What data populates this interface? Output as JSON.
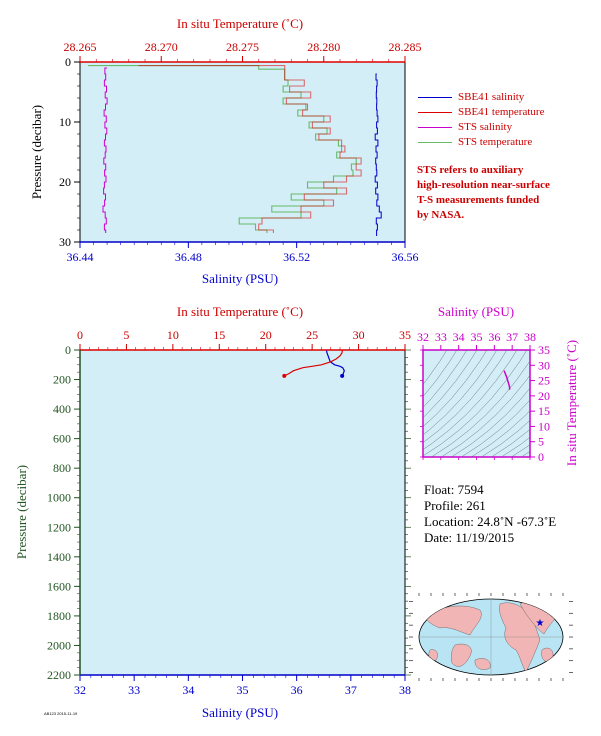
{
  "chart_data": [
    {
      "type": "line",
      "panel": "top",
      "top_axis_title": "In situ Temperature (˚C)",
      "top_ticks": [
        "28.265",
        "28.270",
        "28.275",
        "28.280",
        "28.285"
      ],
      "top_range": [
        28.265,
        28.285
      ],
      "left_axis_title": "Pressure (decibar)",
      "left_ticks": [
        "0",
        "10",
        "20",
        "30"
      ],
      "ylim": [
        0,
        30
      ],
      "bottom_axis_title": "Salinity (PSU)",
      "bottom_ticks": [
        "36.44",
        "36.48",
        "36.52",
        "36.56"
      ],
      "bottom_range": [
        36.44,
        36.56
      ],
      "legend_position": "right",
      "series": [
        {
          "name": "SBE41 salinity",
          "color": "#0000cc",
          "axis": "salinity",
          "x": [
            36.5496,
            36.5493,
            36.5497,
            36.5495,
            36.5494,
            36.5496,
            36.5495,
            36.5497,
            36.55,
            36.5495,
            36.5498,
            36.549,
            36.55,
            36.5493,
            36.5497,
            36.5492,
            36.5494,
            36.5496,
            36.549,
            36.5498,
            36.5492,
            36.55,
            36.5496,
            36.5505,
            36.5512,
            36.5494,
            36.5498,
            36.5495
          ],
          "y": [
            2,
            3,
            4,
            5,
            6,
            7,
            8,
            9,
            10,
            11,
            12,
            13,
            14,
            15,
            16,
            17,
            18,
            19,
            20,
            21,
            22,
            23,
            24,
            25,
            26,
            27,
            28,
            29
          ]
        },
        {
          "name": "SBE41 temperature",
          "color": "#dd0000",
          "axis": "temperature",
          "x": [
            28.2686,
            28.2776,
            28.2776,
            28.2788,
            28.2779,
            28.2792,
            28.2777,
            28.279,
            28.2787,
            28.2804,
            28.2793,
            28.2804,
            28.2797,
            28.2811,
            28.2813,
            28.281,
            28.2823,
            28.282,
            28.2823,
            28.2814,
            28.28,
            28.2814,
            28.2788,
            28.2806,
            28.2786,
            28.2792,
            28.2762,
            28.276,
            28.2769
          ],
          "y": [
            0.6,
            1.2,
            3,
            4,
            5,
            6,
            7,
            8,
            9,
            10,
            11,
            12,
            13,
            14,
            15,
            16,
            17,
            18,
            19,
            20,
            21,
            22,
            23,
            24,
            25,
            26,
            27,
            28,
            28.5
          ]
        },
        {
          "name": "STS salinity",
          "color": "#cc00cc",
          "axis": "salinity",
          "x": [
            36.45,
            36.4492,
            36.4495,
            36.449,
            36.4498,
            36.4493,
            36.45,
            36.4494,
            36.4489,
            36.4497,
            36.4492,
            36.4499,
            36.4494,
            36.449,
            36.4496,
            36.4493,
            36.4488,
            36.4495,
            36.4491,
            36.4496,
            36.449,
            36.4487,
            36.4494,
            36.4491,
            36.4485,
            36.4493,
            36.4497,
            36.449,
            36.4495
          ],
          "y": [
            1,
            2,
            3,
            4,
            5,
            6,
            7,
            8,
            9,
            10,
            11,
            12,
            13,
            14,
            15,
            16,
            17,
            18,
            19,
            20,
            21,
            22,
            23,
            24,
            25,
            26,
            27,
            28,
            28.5
          ]
        },
        {
          "name": "STS temperature",
          "color": "#66bb66",
          "axis": "temperature",
          "x": [
            28.2655,
            28.276,
            28.2776,
            28.2778,
            28.2775,
            28.2786,
            28.2775,
            28.2789,
            28.2784,
            28.28,
            28.2791,
            28.2802,
            28.2795,
            28.2809,
            28.2811,
            28.2808,
            28.282,
            28.2817,
            28.2818,
            28.2806,
            28.279,
            28.2808,
            28.278,
            28.28,
            28.2768,
            28.2786,
            28.2748,
            28.2758,
            28.2765
          ],
          "y": [
            0.6,
            1.2,
            3,
            4,
            5,
            6,
            7,
            8,
            9,
            10,
            11,
            12,
            13,
            14,
            15,
            16,
            17,
            18,
            19,
            20,
            21,
            22,
            23,
            24,
            25,
            26,
            27,
            28,
            28.5
          ]
        }
      ]
    },
    {
      "type": "line",
      "panel": "bottom",
      "top_axis_title": "In situ Temperature (˚C)",
      "top_ticks": [
        "0",
        "5",
        "10",
        "15",
        "20",
        "25",
        "30",
        "35"
      ],
      "top_range": [
        0,
        35
      ],
      "left_axis_title": "Pressure (decibar)",
      "left_ticks": [
        "0",
        "200",
        "400",
        "600",
        "800",
        "1000",
        "1200",
        "1400",
        "1600",
        "1800",
        "2000",
        "2200"
      ],
      "ylim": [
        0,
        2200
      ],
      "bottom_axis_title": "Salinity (PSU)",
      "bottom_ticks": [
        "32",
        "33",
        "34",
        "35",
        "36",
        "37",
        "38"
      ],
      "bottom_range": [
        32,
        38
      ],
      "series": [
        {
          "color": "#0000cc",
          "axis": "salinity",
          "x": [
            36.55,
            36.56,
            36.58,
            36.6,
            36.62,
            36.7,
            36.8,
            36.85,
            36.88,
            36.86,
            36.84
          ],
          "y": [
            2,
            20,
            40,
            60,
            80,
            100,
            110,
            120,
            140,
            160,
            175
          ]
        },
        {
          "color": "#dd0000",
          "axis": "temperature",
          "x": [
            28.27,
            28.2,
            28.0,
            27.6,
            27.0,
            26.0,
            25.0,
            24.0,
            23.0,
            22.5,
            22.0
          ],
          "y": [
            2,
            20,
            40,
            60,
            80,
            100,
            110,
            120,
            140,
            160,
            175
          ]
        }
      ]
    },
    {
      "type": "scatter",
      "panel": "ts-diagram",
      "top_axis_title": "Salinity (PSU)",
      "top_ticks": [
        "32",
        "33",
        "34",
        "35",
        "36",
        "37",
        "38"
      ],
      "top_range": [
        32,
        38
      ],
      "right_axis_title": "In situ Temperature (˚C)",
      "right_ticks": [
        "0",
        "5",
        "10",
        "15",
        "20",
        "25",
        "30",
        "35"
      ],
      "right_range": [
        0,
        35
      ],
      "series": [
        {
          "color": "#cc00cc",
          "x": [
            36.55,
            36.6,
            36.7,
            36.8,
            36.85,
            36.86
          ],
          "y": [
            28.27,
            27.5,
            26.0,
            24.0,
            23.0,
            22.0
          ]
        }
      ]
    }
  ],
  "legend_note": [
    "STS refers to auxiliary",
    "high-resolution near-surface",
    "T-S measurements funded",
    "by NASA."
  ],
  "info": {
    "float": "Float:  7594",
    "profile": "Profile:  261",
    "location": "Location:  24.8˚N  -67.3˚E",
    "date": "Date:  11/19/2015"
  },
  "footer_id": "AB123  2015-11-19",
  "map": {
    "marker_color": "#0000cc",
    "land_color": "#f2b5b5",
    "ocean_color": "#b8e4f4"
  }
}
